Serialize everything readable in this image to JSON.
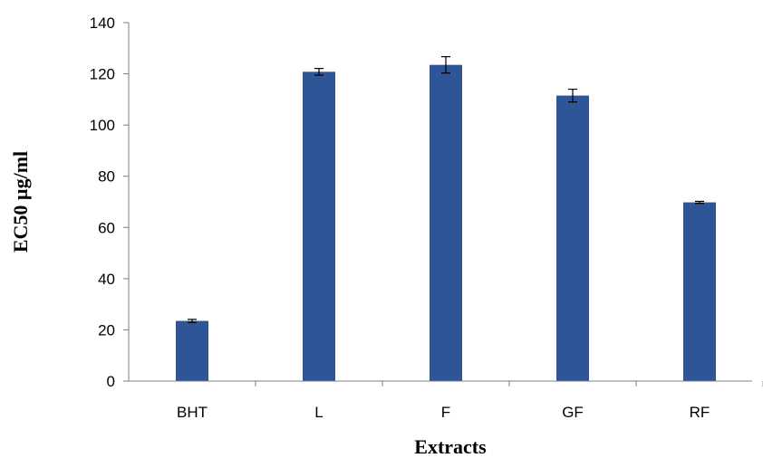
{
  "chart_data": {
    "type": "bar",
    "title": "",
    "xlabel": "Extracts",
    "ylabel": "EC50 µg/ml",
    "ylim": [
      0,
      140
    ],
    "yticks": [
      0,
      20,
      40,
      60,
      80,
      100,
      120,
      140
    ],
    "grid": false,
    "legend": "none",
    "bar_color": "#2E5597",
    "categories": [
      "BHT",
      "L",
      "F",
      "GF",
      "RF"
    ],
    "values": [
      23.5,
      120.8,
      123.5,
      111.5,
      69.8
    ],
    "errors": [
      0.6,
      1.3,
      3.2,
      2.5,
      0.4
    ]
  }
}
